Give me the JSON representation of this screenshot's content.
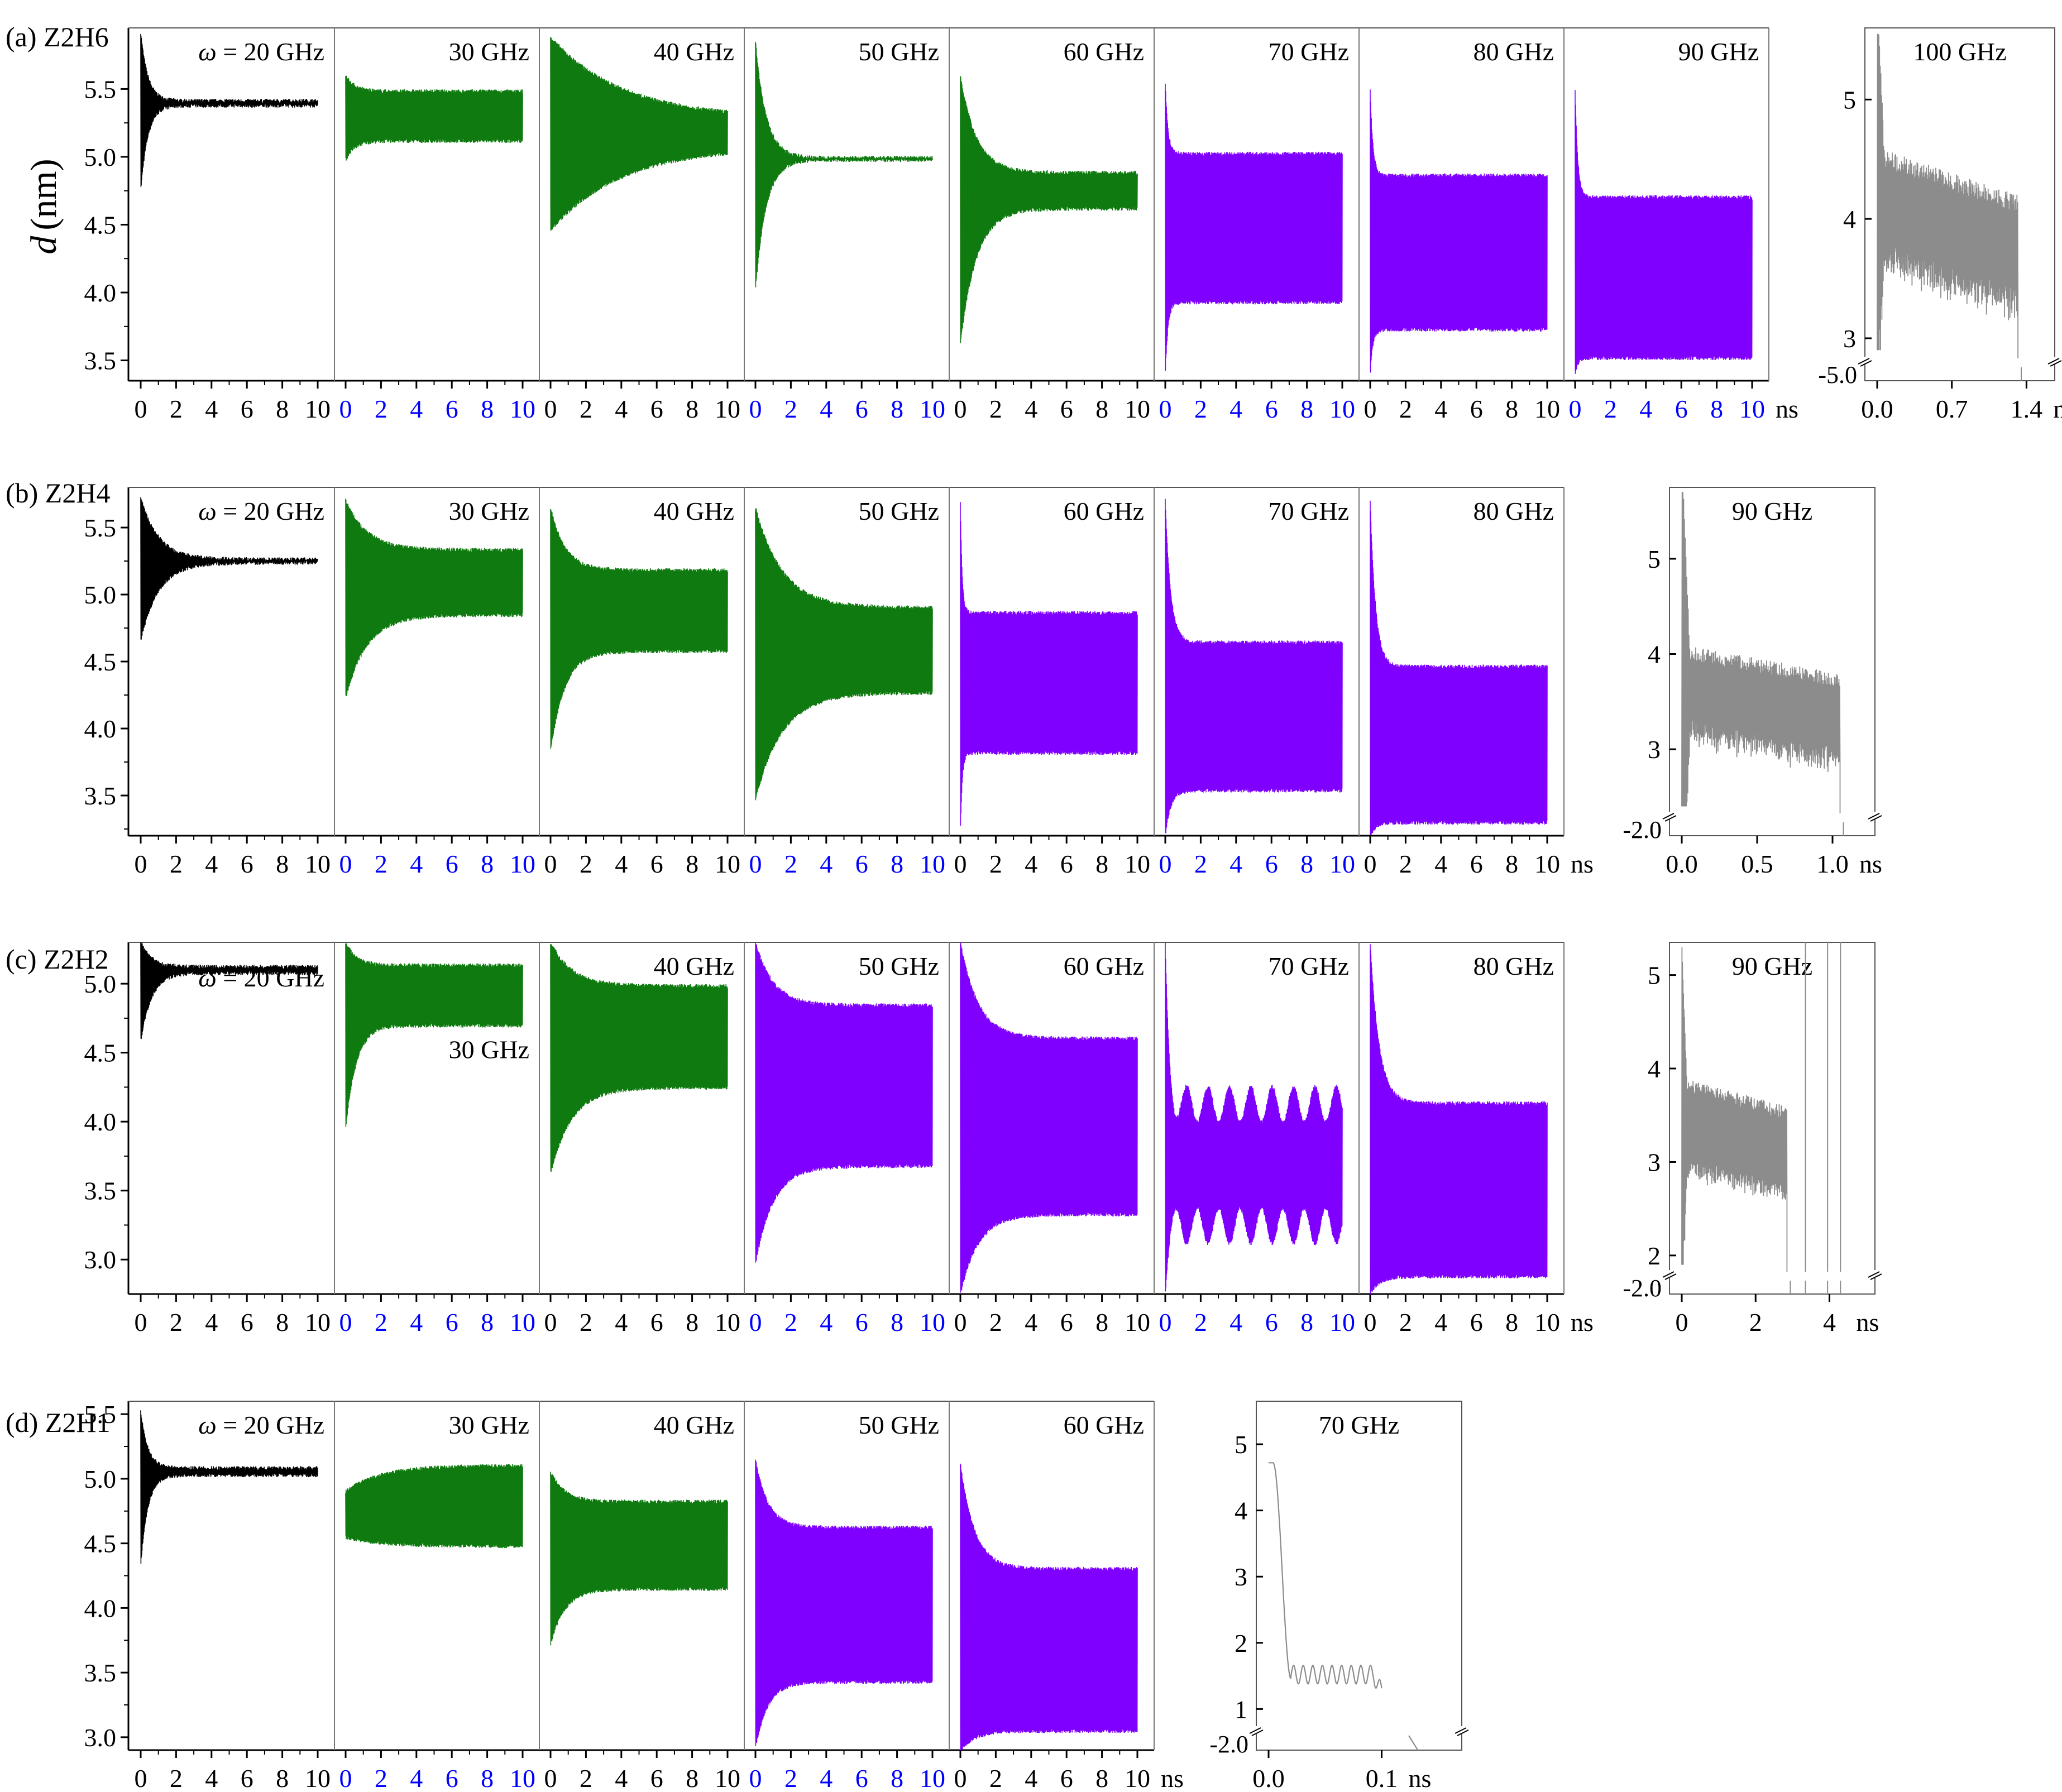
{
  "figure": {
    "ylabel_var": "d",
    "ylabel_unit": "(nm)"
  },
  "colors": {
    "stable": "#000000",
    "green": "#0f7a0f",
    "purple": "#8000ff",
    "rupture": "#8c8c8c",
    "axis": "#000000",
    "blue_tick": "#0000ff"
  },
  "chart_data": [
    {
      "type": "line",
      "panel_label": "(a) Z2H6",
      "ylim": [
        3.35,
        5.95
      ],
      "yticks": [
        "5.5",
        "5.0",
        "4.5",
        "4.0",
        "3.5"
      ],
      "xticks": [
        "0",
        "2",
        "4",
        "6",
        "8",
        "10"
      ],
      "x_unit": "ns",
      "series": [
        {
          "name": "ω = 20 GHz",
          "label_var": "ω",
          "label_rest": " = 20 GHz",
          "color": "stable",
          "init_low": 4.75,
          "init_high": 5.92,
          "final_low": 5.38,
          "final_high": 5.41,
          "decay_ns": 0.4,
          "tick_color": "black"
        },
        {
          "name": "30 GHz",
          "color": "green",
          "init_low": 4.98,
          "init_high": 5.6,
          "final_low": 5.12,
          "final_high": 5.48,
          "decay_ns": 0.5,
          "tick_color": "blue"
        },
        {
          "name": "40 GHz",
          "color": "green",
          "init_low": 4.46,
          "init_high": 5.88,
          "final_low": 5.08,
          "final_high": 5.28,
          "decay_ns": 4.0,
          "tick_color": "black"
        },
        {
          "name": "50 GHz",
          "color": "green",
          "init_low": 4.02,
          "init_high": 5.85,
          "final_low": 4.98,
          "final_high": 4.99,
          "decay_ns": 0.6,
          "tick_color": "blue"
        },
        {
          "name": "60 GHz",
          "color": "green",
          "init_low": 3.62,
          "init_high": 5.6,
          "final_low": 4.62,
          "final_high": 4.88,
          "decay_ns": 0.9,
          "tick_color": "black"
        },
        {
          "name": "70 GHz",
          "color": "purple",
          "init_low": 3.4,
          "init_high": 5.55,
          "final_low": 3.93,
          "final_high": 5.02,
          "decay_ns": 0.15,
          "tick_color": "blue"
        },
        {
          "name": "80 GHz",
          "color": "purple",
          "init_low": 3.4,
          "init_high": 5.5,
          "final_low": 3.73,
          "final_high": 4.86,
          "decay_ns": 0.15,
          "tick_color": "black"
        },
        {
          "name": "90 GHz",
          "color": "purple",
          "init_low": 3.4,
          "init_high": 5.5,
          "final_low": 3.52,
          "final_high": 4.7,
          "decay_ns": 0.15,
          "tick_color": "blue"
        }
      ],
      "inset": {
        "title": "100 GHz",
        "yticks": [
          "5",
          "4",
          "3"
        ],
        "ybreak_label": "-5.0",
        "xticks": [
          "0.0",
          "0.7",
          "1.4"
        ],
        "x_unit": "ns",
        "xmax_ns": 1.55,
        "rupture_ns": 1.32,
        "ylim": [
          2.85,
          5.6
        ],
        "start_high": 5.45,
        "mean_start": 4.1,
        "mean_end": 3.7
      }
    },
    {
      "type": "line",
      "panel_label": "(b) Z2H4",
      "ylim": [
        3.2,
        5.8
      ],
      "yticks": [
        "5.5",
        "5.0",
        "4.5",
        "4.0",
        "3.5"
      ],
      "xticks": [
        "0",
        "2",
        "4",
        "6",
        "8",
        "10"
      ],
      "x_unit": "ns",
      "series": [
        {
          "name": "ω = 20 GHz",
          "label_var": "ω",
          "label_rest": " = 20 GHz",
          "color": "stable",
          "init_low": 4.66,
          "init_high": 5.72,
          "final_low": 5.24,
          "final_high": 5.26,
          "decay_ns": 1.0,
          "tick_color": "black"
        },
        {
          "name": "30 GHz",
          "color": "green",
          "init_low": 4.23,
          "init_high": 5.7,
          "final_low": 4.85,
          "final_high": 5.33,
          "decay_ns": 1.2,
          "tick_color": "blue"
        },
        {
          "name": "40 GHz",
          "color": "green",
          "init_low": 3.83,
          "init_high": 5.65,
          "final_low": 4.58,
          "final_high": 5.18,
          "decay_ns": 0.8,
          "tick_color": "black"
        },
        {
          "name": "50 GHz",
          "color": "green",
          "init_low": 3.47,
          "init_high": 5.65,
          "final_low": 4.27,
          "final_high": 4.9,
          "decay_ns": 1.5,
          "tick_color": "blue"
        },
        {
          "name": "60 GHz",
          "color": "purple",
          "init_low": 3.2,
          "init_high": 5.7,
          "final_low": 3.82,
          "final_high": 4.86,
          "decay_ns": 0.1,
          "tick_color": "black"
        },
        {
          "name": "70 GHz",
          "color": "purple",
          "init_low": 3.2,
          "init_high": 5.7,
          "final_low": 3.54,
          "final_high": 4.64,
          "decay_ns": 0.3,
          "tick_color": "blue"
        },
        {
          "name": "80 GHz",
          "color": "purple",
          "init_low": 3.2,
          "init_high": 5.7,
          "final_low": 3.3,
          "final_high": 4.46,
          "decay_ns": 0.3,
          "tick_color": "black"
        }
      ],
      "inset": {
        "title": "90 GHz",
        "yticks": [
          "5",
          "4",
          "3"
        ],
        "ybreak_label": "-2.0",
        "xticks": [
          "0.0",
          "0.5",
          "1.0"
        ],
        "x_unit": "ns",
        "xmax_ns": 1.2,
        "rupture_ns": 1.05,
        "ylim": [
          2.35,
          5.75
        ],
        "start_high": 5.65,
        "mean_start": 3.6,
        "mean_end": 3.3
      }
    },
    {
      "type": "line",
      "panel_label": "(c) Z2H2",
      "ylim": [
        2.75,
        5.3
      ],
      "yticks": [
        "5.0",
        "4.5",
        "4.0",
        "3.5",
        "3.0"
      ],
      "xticks": [
        "0",
        "2",
        "4",
        "6",
        "8",
        "10"
      ],
      "x_unit": "ns",
      "series": [
        {
          "name": "ω = 20 GHz",
          "label_var": "ω",
          "label_rest": " = 20 GHz",
          "label_pos": "mid",
          "color": "stable",
          "init_low": 4.58,
          "init_high": 5.3,
          "final_low": 5.08,
          "final_high": 5.12,
          "decay_ns": 0.6,
          "tick_color": "black"
        },
        {
          "name": "30 GHz",
          "label_pos": "mid",
          "color": "green",
          "init_low": 3.95,
          "init_high": 5.3,
          "final_low": 4.7,
          "final_high": 5.13,
          "decay_ns": 0.6,
          "tick_color": "blue"
        },
        {
          "name": "40 GHz",
          "color": "green",
          "init_low": 3.63,
          "init_high": 5.3,
          "final_low": 4.25,
          "final_high": 4.98,
          "decay_ns": 1.2,
          "tick_color": "black"
        },
        {
          "name": "50 GHz",
          "color": "purple",
          "init_low": 2.97,
          "init_high": 5.3,
          "final_low": 3.68,
          "final_high": 4.84,
          "decay_ns": 1.0,
          "tick_color": "blue"
        },
        {
          "name": "60 GHz",
          "color": "purple",
          "init_low": 2.75,
          "init_high": 5.3,
          "final_low": 3.33,
          "final_high": 4.6,
          "decay_ns": 1.0,
          "tick_color": "black"
        },
        {
          "name": "70 GHz",
          "color": "purple",
          "init_low": 2.75,
          "init_high": 5.3,
          "final_low": 3.12,
          "final_high": 4.25,
          "decay_ns": 0.2,
          "tick_color": "blue",
          "beats": true
        },
        {
          "name": "80 GHz",
          "color": "purple",
          "init_low": 2.75,
          "init_high": 5.3,
          "final_low": 2.88,
          "final_high": 4.13,
          "decay_ns": 0.5,
          "tick_color": "black"
        }
      ],
      "inset": {
        "title": "90 GHz",
        "yticks": [
          "5",
          "4",
          "3",
          "2"
        ],
        "ybreak_label": "-2.0",
        "xticks": [
          "0",
          "2",
          "4"
        ],
        "x_unit": "ns",
        "xmax_ns": 4.9,
        "rupture_ns": 2.85,
        "ylim": [
          1.85,
          5.35
        ],
        "start_high": 4.9,
        "mean_start": 3.4,
        "mean_end": 3.1,
        "spikes_ns": [
          3.35,
          3.95,
          4.3
        ]
      }
    },
    {
      "type": "line",
      "panel_label": "(d) Z2H1",
      "ylim": [
        2.9,
        5.6
      ],
      "yticks": [
        "5.5",
        "5.0",
        "4.5",
        "4.0",
        "3.5",
        "3.0"
      ],
      "xticks": [
        "0",
        "2",
        "4",
        "6",
        "8",
        "10"
      ],
      "x_unit": "ns",
      "series": [
        {
          "name": "ω = 20 GHz",
          "label_var": "ω",
          "label_rest": " = 20 GHz",
          "color": "stable",
          "init_low": 4.33,
          "init_high": 5.52,
          "final_low": 5.03,
          "final_high": 5.08,
          "decay_ns": 0.4,
          "tick_color": "black"
        },
        {
          "name": "30 GHz",
          "color": "green",
          "init_low": 4.55,
          "init_high": 4.9,
          "final_low": 4.48,
          "final_high": 5.1,
          "decay_ns": -2.0,
          "tick_color": "blue"
        },
        {
          "name": "40 GHz",
          "color": "green",
          "init_low": 3.72,
          "init_high": 5.05,
          "final_low": 4.15,
          "final_high": 4.82,
          "decay_ns": 0.8,
          "tick_color": "black"
        },
        {
          "name": "50 GHz",
          "color": "purple",
          "init_low": 2.92,
          "init_high": 5.15,
          "final_low": 3.43,
          "final_high": 4.62,
          "decay_ns": 0.7,
          "tick_color": "blue"
        },
        {
          "name": "60 GHz",
          "color": "purple",
          "init_low": 2.9,
          "init_high": 5.12,
          "final_low": 3.05,
          "final_high": 4.3,
          "decay_ns": 0.8,
          "tick_color": "black"
        }
      ],
      "inset": {
        "title": "70 GHz",
        "yticks": [
          "5",
          "4",
          "3",
          "2",
          "1"
        ],
        "ybreak_label": "-2.0",
        "xticks": [
          "0.0",
          "0.1"
        ],
        "x_unit": "ns",
        "xmax_ns": 0.16,
        "ylim": [
          0.75,
          5.65
        ],
        "curve": "pinch"
      }
    }
  ]
}
